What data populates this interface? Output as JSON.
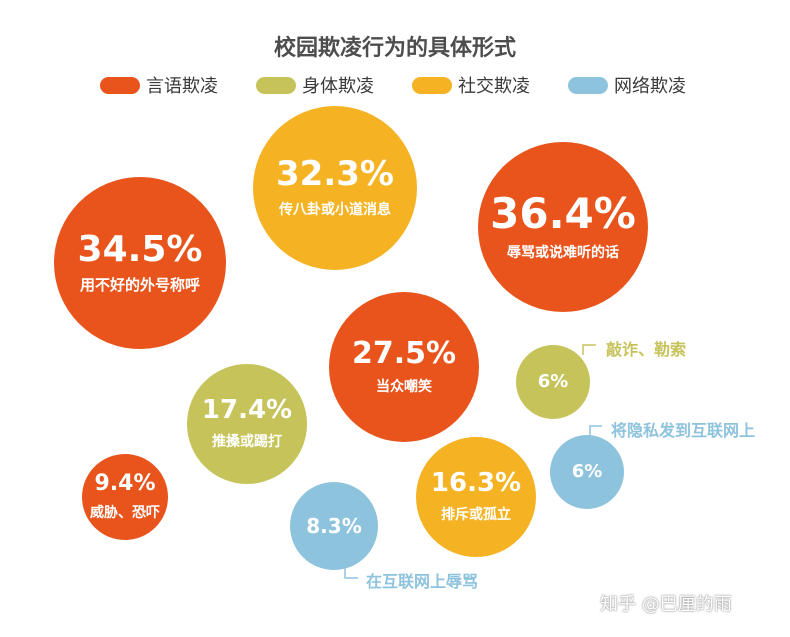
{
  "chart_data": {
    "type": "bubble",
    "title": "校园欺凌行为的具体形式",
    "legend": [
      {
        "name": "言语欺凌",
        "color": "#e8541c"
      },
      {
        "name": "身体欺凌",
        "color": "#c6c35b"
      },
      {
        "name": "社交欺凌",
        "color": "#f5b324"
      },
      {
        "name": "网络欺凌",
        "color": "#8ec3dd"
      }
    ],
    "legend_position": "top",
    "points": [
      {
        "label": "传八卦或小道消息",
        "value": "32.3%",
        "category": "社交欺凌"
      },
      {
        "label": "辱骂或说难听的话",
        "value": "36.4%",
        "category": "言语欺凌"
      },
      {
        "label": "用不好的外号称呼",
        "value": "34.5%",
        "category": "言语欺凌"
      },
      {
        "label": "当众嘲笑",
        "value": "27.5%",
        "category": "言语欺凌"
      },
      {
        "label": "敲诈、勒索",
        "value": "6%",
        "category": "身体欺凌"
      },
      {
        "label": "推搡或踢打",
        "value": "17.4%",
        "category": "身体欺凌"
      },
      {
        "label": "将隐私发到互联网上",
        "value": "6%",
        "category": "网络欺凌"
      },
      {
        "label": "威胁、恐吓",
        "value": "9.4%",
        "category": "言语欺凌"
      },
      {
        "label": "排斥或孤立",
        "value": "16.3%",
        "category": "社交欺凌"
      },
      {
        "label": "在互联网上辱骂",
        "value": "8.3%",
        "category": "网络欺凌"
      }
    ]
  },
  "watermark": "知乎 @巴厘的雨"
}
